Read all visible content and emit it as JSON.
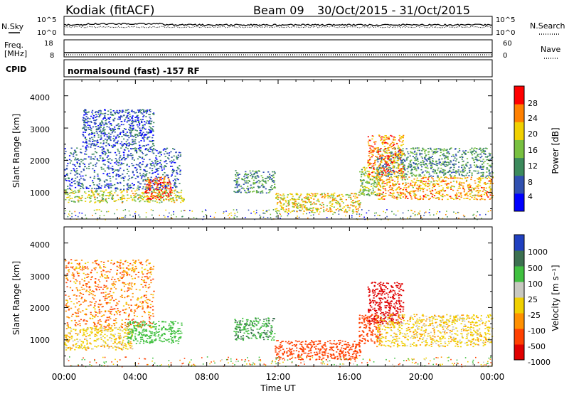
{
  "header": {
    "station": "Kodiak (fitACF)",
    "beam": "Beam 09",
    "date_range": "30/Oct/2015 - 31/Oct/2015"
  },
  "left_labels": {
    "nsky": "N.Sky",
    "freq_line1": "Freq.",
    "freq_line2": "[MHz]",
    "cpid": "CPID"
  },
  "right_labels": {
    "nsearch": "N.Search",
    "nave": "Nave"
  },
  "noise_panel": {
    "left_ticks": [
      "10^5",
      "10^0"
    ],
    "right_ticks": [
      "10^5",
      "10^0"
    ]
  },
  "freq_panel": {
    "left_ticks": [
      "18",
      "8"
    ],
    "right_ticks": [
      "60",
      "0"
    ]
  },
  "cpid_text": "normalsound (fast) -157 RF",
  "x_axis": {
    "label": "Time UT",
    "ticks": [
      "00:00",
      "04:00",
      "08:00",
      "12:00",
      "16:00",
      "20:00",
      "00:00"
    ]
  },
  "y_axis": {
    "label": "Slant Range [km]",
    "ticks": [
      "1000",
      "2000",
      "3000",
      "4000"
    ]
  },
  "power_colorbar": {
    "label": "Power [dB]",
    "ticks": [
      "4",
      "8",
      "12",
      "16",
      "20",
      "24",
      "28"
    ],
    "colors": [
      "#0000ff",
      "#3050b0",
      "#3c8a5c",
      "#78c040",
      "#f0d000",
      "#ff8000",
      "#ff0000"
    ]
  },
  "velocity_colorbar": {
    "label": "Velocity [m s⁻¹]",
    "ticks": [
      "1000",
      "500",
      "100",
      "25",
      "-25",
      "-100",
      "-500",
      "-1000"
    ],
    "colors": [
      "#2040c0",
      "#3c7050",
      "#40c040",
      "#c8c8c0",
      "#f0d000",
      "#ff9000",
      "#ff4000",
      "#e00000"
    ]
  },
  "chart_data": [
    {
      "type": "heatmap",
      "title": "Power",
      "xlabel": "Time UT",
      "ylabel": "Slant Range [km]",
      "xlim": [
        "00:00",
        "24:00"
      ],
      "ylim": [
        180,
        4500
      ],
      "colorbar_label": "Power [dB]",
      "colorbar_range": [
        0,
        30
      ],
      "regions": [
        {
          "t0": 0.0,
          "t1": 6.7,
          "r0": 700,
          "r1": 1100,
          "value": 18
        },
        {
          "t0": 0.0,
          "t1": 6.5,
          "r0": 1100,
          "r1": 2400,
          "value": 9
        },
        {
          "t0": 4.5,
          "t1": 6.0,
          "r0": 800,
          "r1": 1500,
          "value": 26
        },
        {
          "t0": 1.0,
          "t1": 5.0,
          "r0": 2400,
          "r1": 3600,
          "value": 8
        },
        {
          "t0": 9.5,
          "t1": 11.8,
          "r0": 1000,
          "r1": 1700,
          "value": 12
        },
        {
          "t0": 11.8,
          "t1": 16.6,
          "r0": 400,
          "r1": 1000,
          "value": 20
        },
        {
          "t0": 16.5,
          "t1": 17.7,
          "r0": 900,
          "r1": 1800,
          "value": 16
        },
        {
          "t0": 17.5,
          "t1": 24.0,
          "r0": 800,
          "r1": 1500,
          "value": 22
        },
        {
          "t0": 17.5,
          "t1": 24.0,
          "r0": 1500,
          "r1": 2400,
          "value": 12
        },
        {
          "t0": 17.0,
          "t1": 19.0,
          "r0": 1500,
          "r1": 2800,
          "value": 24
        }
      ]
    },
    {
      "type": "heatmap",
      "title": "Velocity",
      "xlabel": "Time UT",
      "ylabel": "Slant Range [km]",
      "xlim": [
        "00:00",
        "24:00"
      ],
      "ylim": [
        180,
        4500
      ],
      "colorbar_label": "Velocity [m s⁻¹]",
      "colorbar_range": [
        -1000,
        1000
      ],
      "regions": [
        {
          "t0": 0.0,
          "t1": 3.8,
          "r0": 700,
          "r1": 1400,
          "value": 0
        },
        {
          "t0": 3.5,
          "t1": 6.6,
          "r0": 900,
          "r1": 1600,
          "value": 150
        },
        {
          "t0": 0.0,
          "t1": 5.0,
          "r0": 1400,
          "r1": 3500,
          "value": -50
        },
        {
          "t0": 9.5,
          "t1": 11.8,
          "r0": 1000,
          "r1": 1700,
          "value": 300
        },
        {
          "t0": 11.8,
          "t1": 16.6,
          "r0": 400,
          "r1": 1000,
          "value": -150
        },
        {
          "t0": 16.5,
          "t1": 17.7,
          "r0": 900,
          "r1": 1800,
          "value": -200
        },
        {
          "t0": 17.0,
          "t1": 19.0,
          "r0": 1500,
          "r1": 2800,
          "value": -500
        },
        {
          "t0": 17.5,
          "t1": 24.0,
          "r0": 800,
          "r1": 1800,
          "value": 0
        }
      ]
    }
  ]
}
